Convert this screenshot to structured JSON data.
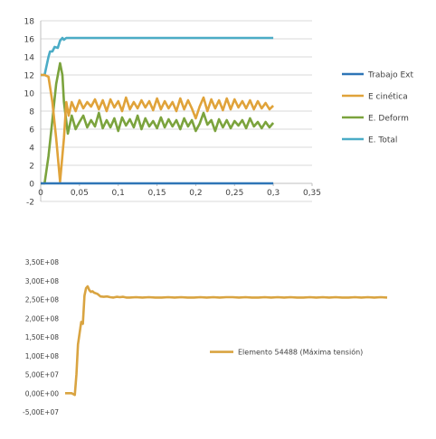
{
  "chart_data": [
    {
      "type": "line",
      "title": "",
      "xlabel": "",
      "ylabel": "",
      "xlim": [
        0,
        0.35
      ],
      "ylim": [
        -2,
        18
      ],
      "x_ticks": [
        "0",
        "0,05",
        "0,1",
        "0,15",
        "0,2",
        "0,25",
        "0,3",
        "0,35"
      ],
      "y_ticks": [
        "-2",
        "0",
        "2",
        "4",
        "6",
        "8",
        "10",
        "12",
        "14",
        "16",
        "18"
      ],
      "grid": true,
      "legend_position": "right",
      "series": [
        {
          "name": "Trabajo Ext",
          "color": "#2e75b6",
          "points": [
            [
              0,
              0
            ],
            [
              0.3,
              0
            ]
          ]
        },
        {
          "name": "E cinética",
          "color": "#e0a33a",
          "points": [
            [
              0,
              12
            ],
            [
              0.005,
              12
            ],
            [
              0.01,
              11.8
            ],
            [
              0.015,
              9
            ],
            [
              0.02,
              5
            ],
            [
              0.025,
              0.2
            ],
            [
              0.03,
              5
            ],
            [
              0.033,
              9
            ],
            [
              0.036,
              7.5
            ],
            [
              0.04,
              9
            ],
            [
              0.045,
              8
            ],
            [
              0.05,
              9.2
            ],
            [
              0.055,
              8.3
            ],
            [
              0.06,
              9
            ],
            [
              0.065,
              8.5
            ],
            [
              0.07,
              9.3
            ],
            [
              0.075,
              8.2
            ],
            [
              0.08,
              9.2
            ],
            [
              0.085,
              8
            ],
            [
              0.09,
              9.3
            ],
            [
              0.095,
              8.4
            ],
            [
              0.1,
              9.1
            ],
            [
              0.105,
              8
            ],
            [
              0.11,
              9.5
            ],
            [
              0.115,
              8.2
            ],
            [
              0.12,
              9
            ],
            [
              0.125,
              8.3
            ],
            [
              0.13,
              9.2
            ],
            [
              0.135,
              8.4
            ],
            [
              0.14,
              9.1
            ],
            [
              0.145,
              8.1
            ],
            [
              0.15,
              9.4
            ],
            [
              0.155,
              8.2
            ],
            [
              0.16,
              9.1
            ],
            [
              0.165,
              8.3
            ],
            [
              0.17,
              9
            ],
            [
              0.175,
              8
            ],
            [
              0.18,
              9.4
            ],
            [
              0.185,
              8.2
            ],
            [
              0.19,
              9.2
            ],
            [
              0.195,
              8.3
            ],
            [
              0.2,
              7.2
            ],
            [
              0.205,
              8.5
            ],
            [
              0.21,
              9.5
            ],
            [
              0.215,
              8
            ],
            [
              0.22,
              9.3
            ],
            [
              0.225,
              8.3
            ],
            [
              0.23,
              9.2
            ],
            [
              0.235,
              8.1
            ],
            [
              0.24,
              9.4
            ],
            [
              0.245,
              8.2
            ],
            [
              0.25,
              9.3
            ],
            [
              0.255,
              8.4
            ],
            [
              0.26,
              9.1
            ],
            [
              0.265,
              8.3
            ],
            [
              0.27,
              9.2
            ],
            [
              0.275,
              8.2
            ],
            [
              0.28,
              9.1
            ],
            [
              0.285,
              8.3
            ],
            [
              0.29,
              8.9
            ],
            [
              0.295,
              8.2
            ],
            [
              0.3,
              8.6
            ]
          ]
        },
        {
          "name": "E. Deform",
          "color": "#7ba33d",
          "points": [
            [
              0,
              0
            ],
            [
              0.005,
              0
            ],
            [
              0.01,
              3
            ],
            [
              0.015,
              7
            ],
            [
              0.02,
              11
            ],
            [
              0.025,
              13.3
            ],
            [
              0.028,
              12
            ],
            [
              0.03,
              9
            ],
            [
              0.035,
              5.5
            ],
            [
              0.04,
              7.5
            ],
            [
              0.045,
              6
            ],
            [
              0.05,
              6.8
            ],
            [
              0.055,
              7.5
            ],
            [
              0.06,
              6.2
            ],
            [
              0.065,
              7
            ],
            [
              0.07,
              6.3
            ],
            [
              0.075,
              7.8
            ],
            [
              0.08,
              6.1
            ],
            [
              0.085,
              7
            ],
            [
              0.09,
              6.2
            ],
            [
              0.095,
              7.2
            ],
            [
              0.1,
              5.8
            ],
            [
              0.105,
              7.3
            ],
            [
              0.11,
              6.4
            ],
            [
              0.115,
              7.1
            ],
            [
              0.12,
              6.2
            ],
            [
              0.125,
              7.5
            ],
            [
              0.13,
              6
            ],
            [
              0.135,
              7.2
            ],
            [
              0.14,
              6.3
            ],
            [
              0.145,
              6.9
            ],
            [
              0.15,
              6.1
            ],
            [
              0.155,
              7.3
            ],
            [
              0.16,
              6.2
            ],
            [
              0.165,
              7.1
            ],
            [
              0.17,
              6.3
            ],
            [
              0.175,
              7
            ],
            [
              0.18,
              6
            ],
            [
              0.185,
              7.2
            ],
            [
              0.19,
              6.3
            ],
            [
              0.195,
              7
            ],
            [
              0.2,
              5.8
            ],
            [
              0.205,
              6.6
            ],
            [
              0.21,
              7.8
            ],
            [
              0.215,
              6.5
            ],
            [
              0.22,
              7
            ],
            [
              0.225,
              5.8
            ],
            [
              0.23,
              7.1
            ],
            [
              0.235,
              6.2
            ],
            [
              0.24,
              7
            ],
            [
              0.245,
              6.1
            ],
            [
              0.25,
              6.9
            ],
            [
              0.255,
              6.4
            ],
            [
              0.26,
              7
            ],
            [
              0.265,
              6.1
            ],
            [
              0.27,
              7.2
            ],
            [
              0.275,
              6.3
            ],
            [
              0.28,
              6.8
            ],
            [
              0.285,
              6.1
            ],
            [
              0.29,
              6.8
            ],
            [
              0.295,
              6.2
            ],
            [
              0.3,
              6.7
            ]
          ]
        },
        {
          "name": "E. Total",
          "color": "#4bacc6",
          "points": [
            [
              0,
              12
            ],
            [
              0.005,
              12
            ],
            [
              0.01,
              14
            ],
            [
              0.012,
              14.6
            ],
            [
              0.015,
              14.6
            ],
            [
              0.018,
              15.1
            ],
            [
              0.022,
              15
            ],
            [
              0.025,
              15.8
            ],
            [
              0.028,
              16.1
            ],
            [
              0.03,
              15.9
            ],
            [
              0.033,
              16.1
            ],
            [
              0.3,
              16.1
            ]
          ]
        }
      ]
    },
    {
      "type": "line",
      "title": "",
      "xlabel": "",
      "ylabel": "",
      "ylim": [
        -50000000,
        350000000
      ],
      "y_ticks": [
        "-5,00E+07",
        "0,00E+00",
        "5,00E+07",
        "1,00E+08",
        "1,50E+08",
        "2,00E+08",
        "2,50E+08",
        "3,00E+08",
        "3,50E+08"
      ],
      "grid": false,
      "legend_position": "inside-right",
      "series": [
        {
          "name": "Elemento 54488 (Máxima tensión)",
          "color": "#d9a441",
          "x": [
            0,
            0.02,
            0.03,
            0.035,
            0.04,
            0.045,
            0.05,
            0.055,
            0.06,
            0.065,
            0.07,
            0.075,
            0.08,
            0.085,
            0.09,
            0.1,
            0.11,
            0.12,
            0.13,
            0.14,
            0.15,
            0.16,
            0.17,
            0.18,
            0.19,
            0.2,
            0.22,
            0.24,
            0.26,
            0.28,
            0.3,
            0.32,
            0.34,
            0.36,
            0.38,
            0.4,
            0.42,
            0.44,
            0.46,
            0.48,
            0.5,
            0.52,
            0.54,
            0.56,
            0.58,
            0.6,
            0.62,
            0.64,
            0.66,
            0.68,
            0.7,
            0.72,
            0.74,
            0.76,
            0.78,
            0.8,
            0.82,
            0.84,
            0.86,
            0.88,
            0.9,
            0.92,
            0.94,
            0.96,
            0.98,
            1.0
          ],
          "values": [
            0,
            0,
            -5000000,
            50000000,
            130000000,
            160000000,
            190000000,
            185000000,
            260000000,
            280000000,
            285000000,
            275000000,
            270000000,
            272000000,
            268000000,
            265000000,
            258000000,
            257000000,
            258000000,
            256000000,
            255000000,
            257000000,
            256000000,
            257000000,
            255000000,
            255000000,
            256000000,
            255000000,
            256000000,
            255000000,
            255000000,
            256000000,
            255000000,
            256000000,
            255000000,
            255000000,
            256000000,
            255000000,
            256000000,
            255000000,
            256000000,
            256000000,
            255000000,
            256000000,
            255000000,
            255000000,
            256000000,
            255000000,
            256000000,
            255000000,
            256000000,
            255000000,
            255000000,
            256000000,
            255000000,
            256000000,
            255000000,
            256000000,
            255000000,
            255000000,
            256000000,
            255000000,
            256000000,
            255000000,
            256000000,
            255000000
          ]
        }
      ]
    }
  ]
}
